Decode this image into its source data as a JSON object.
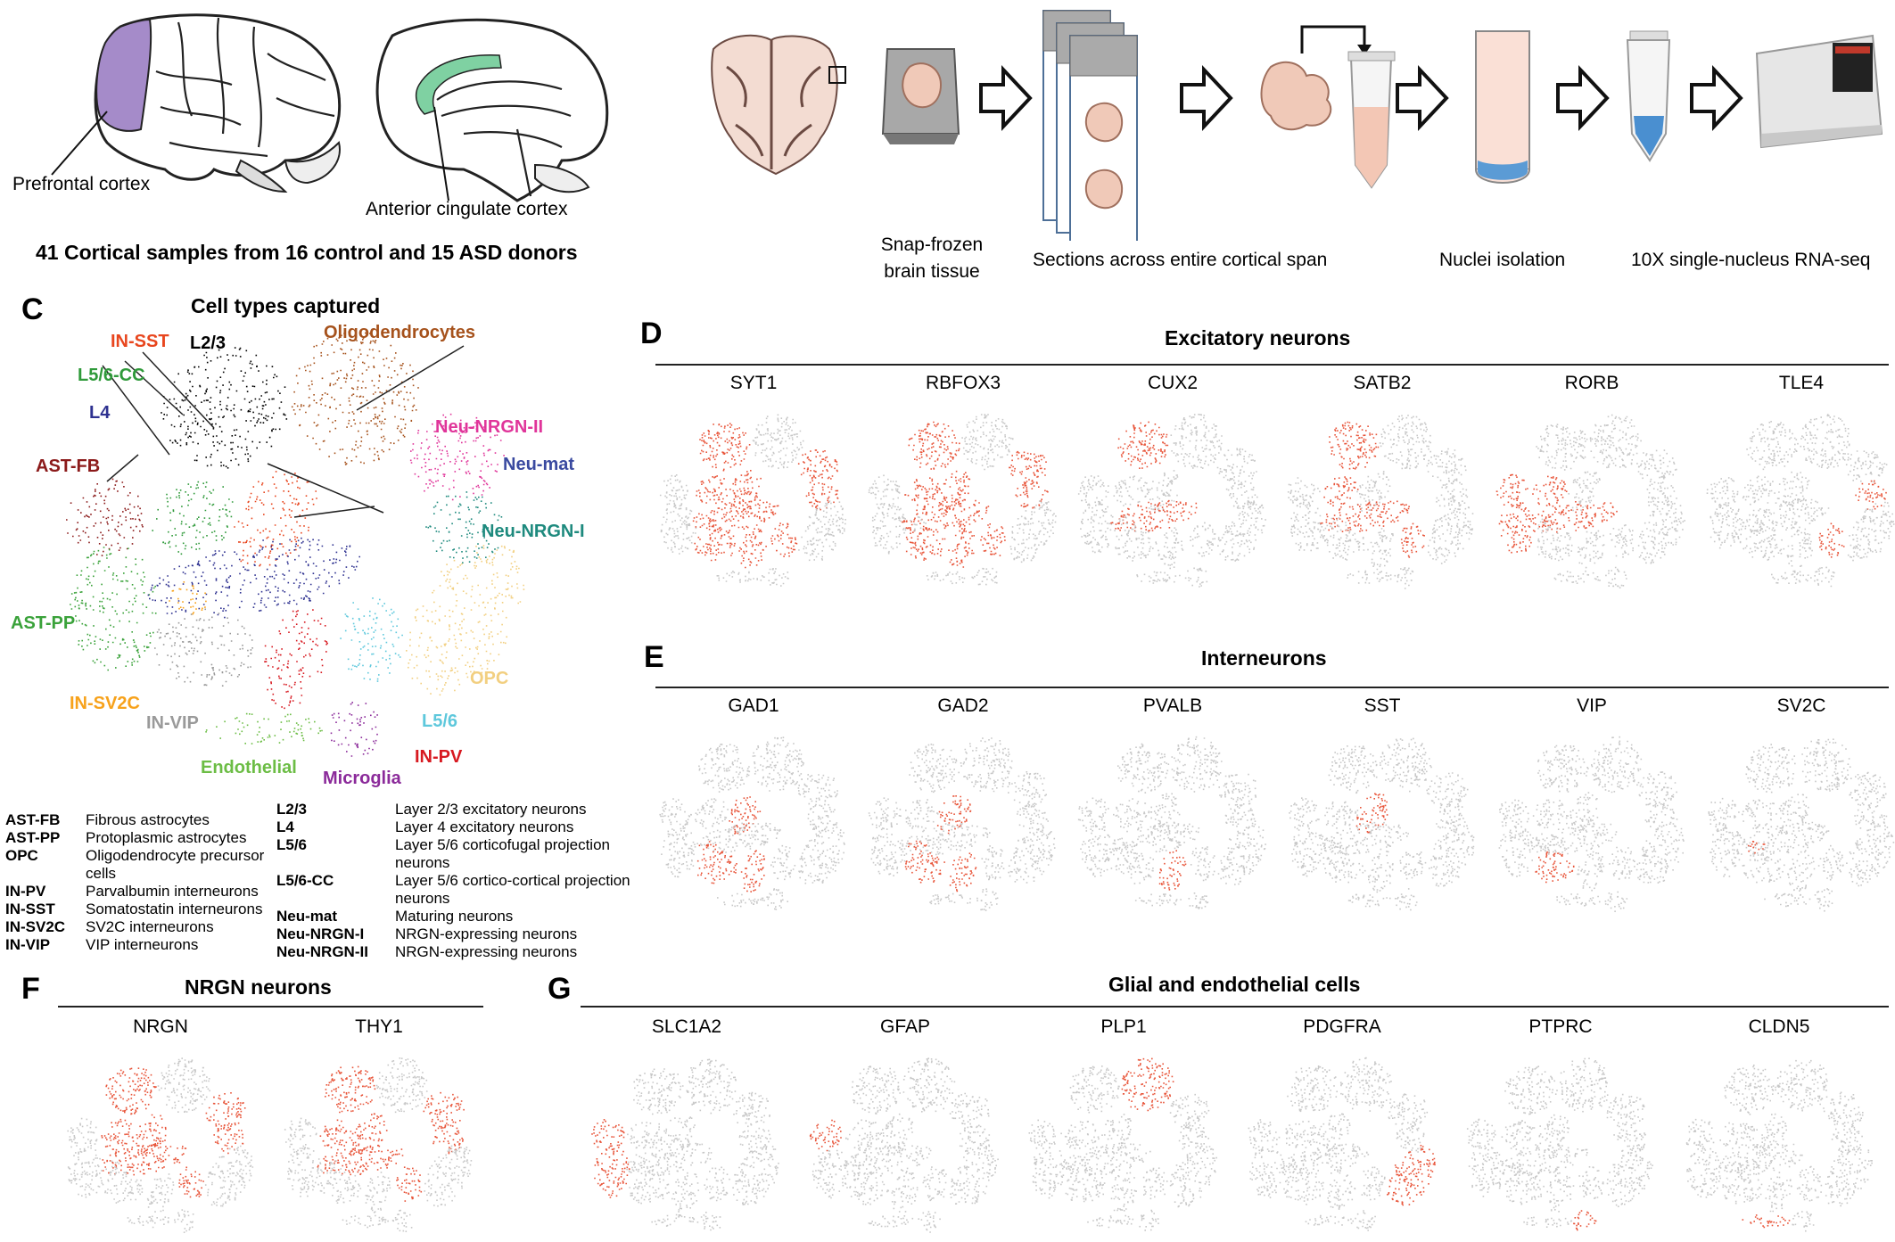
{
  "panelA": {
    "labels": {
      "pfc": "Prefrontal cortex",
      "acc": "Anterior cingulate cortex"
    },
    "caption": "41 Cortical samples from 16 control and 15 ASD donors",
    "colors": {
      "pfc": "#a58bc9",
      "acc": "#7fd1a2"
    }
  },
  "panelB": {
    "steps": [
      "Snap-frozen\nbrain tissue",
      "Sections across entire cortical span",
      "Nuclei isolation",
      "10X single-nucleus RNA-seq"
    ]
  },
  "panelC": {
    "letter": "C",
    "title": "Cell types captured",
    "clusters": [
      {
        "label": "L2/3",
        "color": "#000000"
      },
      {
        "label": "IN-SST",
        "color": "#e8461e"
      },
      {
        "label": "Oligodendrocytes",
        "color": "#a6521c"
      },
      {
        "label": "L5/6-CC",
        "color": "#2f9a3a"
      },
      {
        "label": "L4",
        "color": "#2e3190"
      },
      {
        "label": "Neu-NRGN-II",
        "color": "#e0359a"
      },
      {
        "label": "AST-FB",
        "color": "#8b1a1a"
      },
      {
        "label": "Neu-mat",
        "color": "#3a4aa0"
      },
      {
        "label": "Neu-NRGN-I",
        "color": "#1e8a7e"
      },
      {
        "label": "AST-PP",
        "color": "#3aa23a"
      },
      {
        "label": "OPC",
        "color": "#f2cf80"
      },
      {
        "label": "IN-SV2C",
        "color": "#f7a21b"
      },
      {
        "label": "L5/6",
        "color": "#5ec8dc"
      },
      {
        "label": "IN-VIP",
        "color": "#9a9a9a"
      },
      {
        "label": "IN-PV",
        "color": "#d71920"
      },
      {
        "label": "Endothelial",
        "color": "#6cbd45"
      },
      {
        "label": "Microglia",
        "color": "#8b2a9a"
      }
    ],
    "legend_left": [
      {
        "abbr": "AST-FB",
        "desc": "Fibrous astrocytes"
      },
      {
        "abbr": "AST-PP",
        "desc": "Protoplasmic astrocytes"
      },
      {
        "abbr": "OPC",
        "desc": "Oligodendrocyte precursor\ncells"
      },
      {
        "abbr": "IN-PV",
        "desc": "Parvalbumin interneurons"
      },
      {
        "abbr": "IN-SST",
        "desc": "Somatostatin interneurons"
      },
      {
        "abbr": "IN-SV2C",
        "desc": "SV2C interneurons"
      },
      {
        "abbr": "IN-VIP",
        "desc": "VIP interneurons"
      }
    ],
    "legend_right": [
      {
        "abbr": "L2/3",
        "desc": "Layer 2/3 excitatory neurons"
      },
      {
        "abbr": "L4",
        "desc": "Layer 4 excitatory neurons"
      },
      {
        "abbr": "L5/6",
        "desc": "Layer 5/6 corticofugal projection\nneurons"
      },
      {
        "abbr": "L5/6-CC",
        "desc": "Layer 5/6 cortico-cortical projection\nneurons"
      },
      {
        "abbr": "Neu-mat",
        "desc": "Maturing neurons"
      },
      {
        "abbr": "Neu-NRGN-I",
        "desc": "NRGN-expressing neurons"
      },
      {
        "abbr": "Neu-NRGN-II",
        "desc": "NRGN-expressing neurons"
      }
    ]
  },
  "panelD": {
    "letter": "D",
    "title": "Excitatory neurons",
    "genes": [
      "SYT1",
      "RBFOX3",
      "CUX2",
      "SATB2",
      "RORB",
      "TLE4"
    ]
  },
  "panelE": {
    "letter": "E",
    "title": "Interneurons",
    "genes": [
      "GAD1",
      "GAD2",
      "PVALB",
      "SST",
      "VIP",
      "SV2C"
    ]
  },
  "panelF": {
    "letter": "F",
    "title": "NRGN neurons",
    "genes": [
      "NRGN",
      "THY1"
    ]
  },
  "panelG": {
    "letter": "G",
    "title": "Glial and endothelial cells",
    "genes": [
      "SLC1A2",
      "GFAP",
      "PLP1",
      "PDGFRA",
      "PTPRC",
      "CLDN5"
    ]
  },
  "colors": {
    "base": "#c8c8c8",
    "expr": "#e8553a"
  }
}
